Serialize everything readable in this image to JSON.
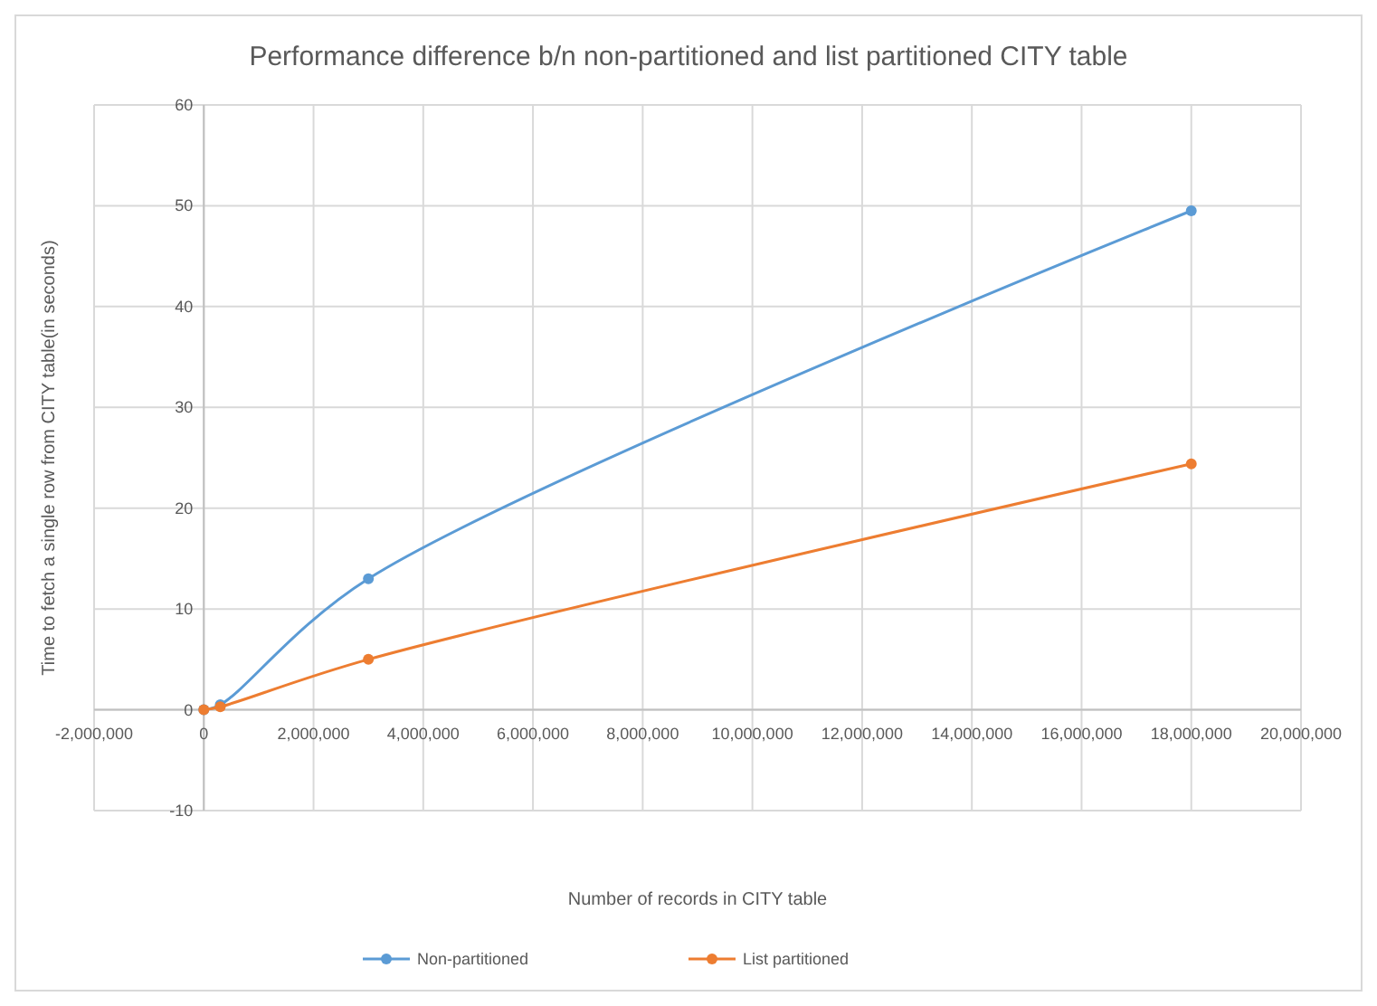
{
  "chart_data": {
    "type": "line",
    "title": "Performance difference b/n non-partitioned and list partitioned CITY table",
    "xlabel": "Number of records in CITY table",
    "ylabel": "Time to fetch a single row from CITY table(in seconds)",
    "x": [
      0,
      300000,
      3000000,
      18000000
    ],
    "series": [
      {
        "name": "Non-partitioned",
        "color": "#5b9bd5",
        "values": [
          0,
          0.5,
          13,
          49.5
        ]
      },
      {
        "name": "List partitioned",
        "color": "#ed7d31",
        "values": [
          0,
          0.3,
          5,
          24.4
        ]
      }
    ],
    "xlim": [
      -2000000,
      20000000
    ],
    "xticks": [
      {
        "value": -2000000,
        "label": "-2,000,000"
      },
      0,
      {
        "value": 2000000,
        "label": "2,000,000"
      },
      {
        "value": 4000000,
        "label": "4,000,000"
      },
      {
        "value": 6000000,
        "label": "6,000,000"
      },
      {
        "value": 8000000,
        "label": "8,000,000"
      },
      {
        "value": 10000000,
        "label": "10,000,000"
      },
      {
        "value": 12000000,
        "label": "12,000,000"
      },
      {
        "value": 14000000,
        "label": "14,000,000"
      },
      {
        "value": 16000000,
        "label": "16,000,000"
      },
      {
        "value": 18000000,
        "label": "18,000,000"
      },
      {
        "value": 20000000,
        "label": "20,000,000"
      }
    ],
    "ylim": [
      -10,
      60
    ],
    "yticks": [
      -10,
      0,
      10,
      20,
      30,
      40,
      50,
      60
    ],
    "grid": true,
    "legend": "bottom",
    "marker": "circle",
    "line_style": "solid"
  }
}
